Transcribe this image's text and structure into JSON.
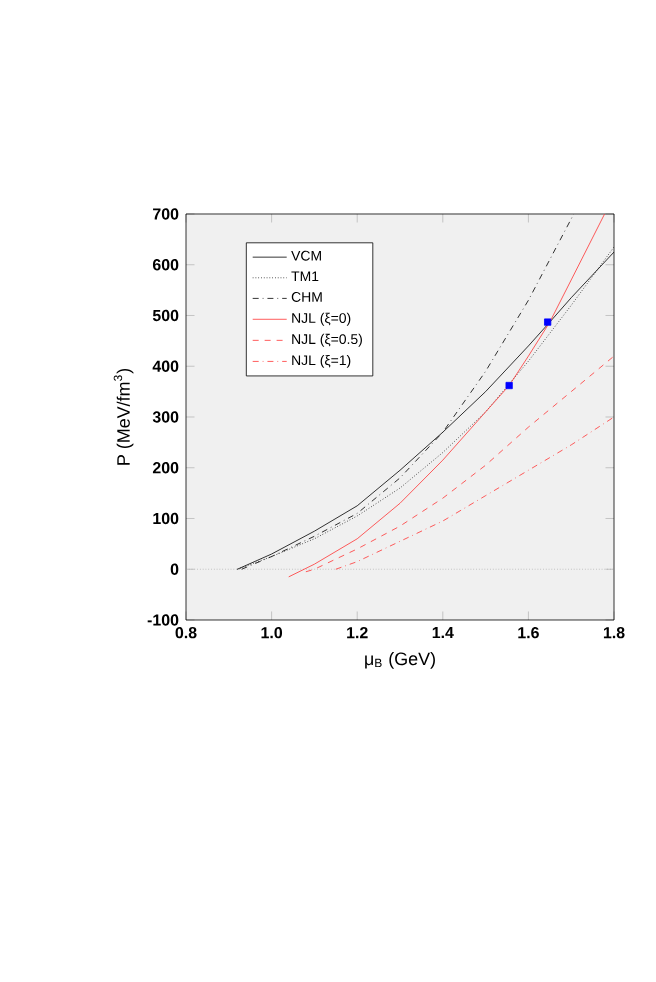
{
  "chart_data": {
    "type": "line",
    "xlabel": "μ$_{B}$ (GeV)",
    "ylabel": "P (MeV/fm$^{3}$)",
    "xlim": [
      0.8,
      1.8
    ],
    "ylim": [
      -100,
      700
    ],
    "xticks": [
      0.8,
      {
        "value": 1,
        "label": "1.0"
      },
      1.2,
      1.4,
      1.6,
      1.8
    ],
    "yticks": [
      -100,
      0,
      100,
      200,
      300,
      400,
      500,
      600,
      700
    ],
    "legend": "top left",
    "grid": false,
    "marker": "none",
    "ref_lines": [
      {
        "axis": "y",
        "value": 0,
        "color": "#aaaaaa",
        "line_style": "dotted"
      }
    ],
    "series": [
      {
        "name": "VCM",
        "color": "#000000",
        "line_style": "solid",
        "x": [
          0.92,
          1.0,
          1.1,
          1.2,
          1.3,
          1.4,
          1.5,
          1.6,
          1.65,
          1.7,
          1.8
        ],
        "values": [
          0,
          30,
          75,
          125,
          195,
          270,
          350,
          440,
          487,
          535,
          625
        ]
      },
      {
        "name": "TM1",
        "color": "#000000",
        "line_style": "dotted",
        "x": [
          0.92,
          1.0,
          1.1,
          1.2,
          1.3,
          1.4,
          1.5,
          1.6,
          1.7,
          1.8
        ],
        "values": [
          0,
          25,
          60,
          105,
          160,
          230,
          310,
          410,
          520,
          635
        ]
      },
      {
        "name": "CHM",
        "color": "#000000",
        "line_style": "dashdot",
        "x": [
          0.93,
          1.0,
          1.1,
          1.2,
          1.3,
          1.4,
          1.5,
          1.6,
          1.706
        ],
        "values": [
          0,
          25,
          65,
          110,
          180,
          270,
          390,
          530,
          700
        ]
      },
      {
        "name": "NJL (ξ=0)",
        "color": "#ff3333",
        "line_style": "solid",
        "x": [
          1.04,
          1.1,
          1.2,
          1.3,
          1.4,
          1.5,
          1.555,
          1.6,
          1.65,
          1.7,
          1.778
        ],
        "values": [
          -15,
          10,
          60,
          130,
          215,
          310,
          362,
          420,
          487,
          570,
          700
        ]
      },
      {
        "name": "NJL (ξ=0.5)",
        "color": "#ff3333",
        "line_style": "dashed",
        "x": [
          1.08,
          1.1,
          1.2,
          1.3,
          1.4,
          1.5,
          1.6,
          1.7,
          1.8
        ],
        "values": [
          -5,
          0,
          40,
          85,
          140,
          205,
          280,
          350,
          420
        ]
      },
      {
        "name": "NJL (ξ=1)",
        "color": "#ff3333",
        "line_style": "dashdot",
        "x": [
          1.15,
          1.2,
          1.3,
          1.4,
          1.5,
          1.6,
          1.7,
          1.8
        ],
        "values": [
          0,
          15,
          55,
          95,
          145,
          195,
          245,
          300
        ]
      },
      {
        "type": "scatter",
        "color": "#0000ff",
        "marker": "square",
        "x": [
          1.555,
          1.645
        ],
        "values": [
          362,
          487
        ]
      }
    ]
  }
}
